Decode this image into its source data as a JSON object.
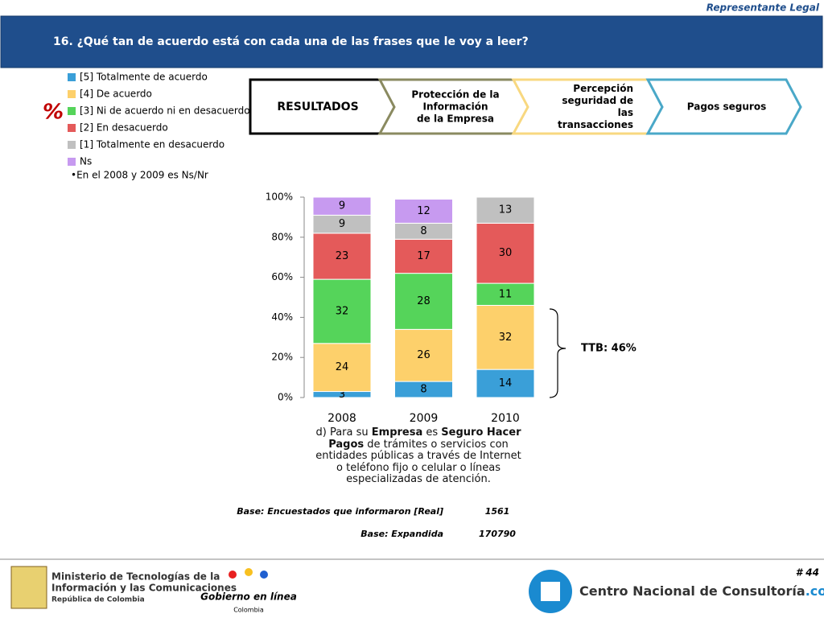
{
  "header": {
    "role": "Representante Legal",
    "title": "16. ¿Qué  tan de acuerdo está con cada una de las frases  que le voy a  leer?",
    "page": "# 44"
  },
  "steps": [
    {
      "lines": [
        "RESULTADOS"
      ]
    },
    {
      "lines": [
        "Protección de la",
        "Información",
        "de la Empresa"
      ]
    },
    {
      "lines": [
        "Percepción",
        "seguridad de",
        "las",
        "transacciones"
      ]
    },
    {
      "lines": [
        "Pagos seguros"
      ]
    }
  ],
  "unit_mark": "%",
  "note": "•En el 2008 y 2009 es Ns/Nr",
  "chart_data": {
    "type": "stacked_bar",
    "categories": [
      "2008",
      "2009",
      "2010"
    ],
    "series": [
      {
        "name": "[5] Totalmente de acuerdo",
        "color": "#3a9fd8",
        "values": [
          3,
          8,
          14
        ]
      },
      {
        "name": "[4] De acuerdo",
        "color": "#fdd06b",
        "values": [
          24,
          26,
          32
        ]
      },
      {
        "name": "[3] Ni de acuerdo ni en desacuerdo",
        "color": "#55d45a",
        "values": [
          32,
          28,
          11
        ]
      },
      {
        "name": "[2] En desacuerdo",
        "color": "#e45a5a",
        "values": [
          23,
          17,
          30
        ]
      },
      {
        "name": "[1] Totalmente en desacuerdo",
        "color": "#c0c0c0",
        "values": [
          9,
          8,
          13
        ]
      },
      {
        "name": "Ns",
        "color": "#c79af0",
        "values": [
          9,
          12,
          null
        ]
      }
    ],
    "ylim": [
      0,
      100
    ],
    "yticks": [
      {
        "value": 0,
        "label": "0%"
      },
      {
        "value": 20,
        "label": "20%"
      },
      {
        "value": 40,
        "label": "40%"
      },
      {
        "value": 60,
        "label": "60%"
      },
      {
        "value": 80,
        "label": "80%"
      },
      {
        "value": 100,
        "label": "100%"
      }
    ],
    "annotation": "TTB: 46%"
  },
  "caption": {
    "parts": [
      "d) Para su ",
      "Empresa",
      " es ",
      "Seguro Hacer Pagos",
      " de trámites o servicios con entidades públicas a través de Internet o teléfono fijo o celular o líneas especializadas de atención."
    ]
  },
  "base": {
    "rows": [
      [
        "Base: Encuestados que informaron [Real]",
        "1561"
      ],
      [
        "Base: Expandida",
        "170790"
      ]
    ]
  },
  "logos": {
    "ministry": [
      "Ministerio de Tecnologías de la",
      "Información y las Comunicaciones",
      "República de Colombia"
    ],
    "gobierno": [
      "Gobierno en línea",
      "Colombia"
    ],
    "cnc": [
      "Centro Nacional de Consultoría",
      ".com"
    ]
  }
}
